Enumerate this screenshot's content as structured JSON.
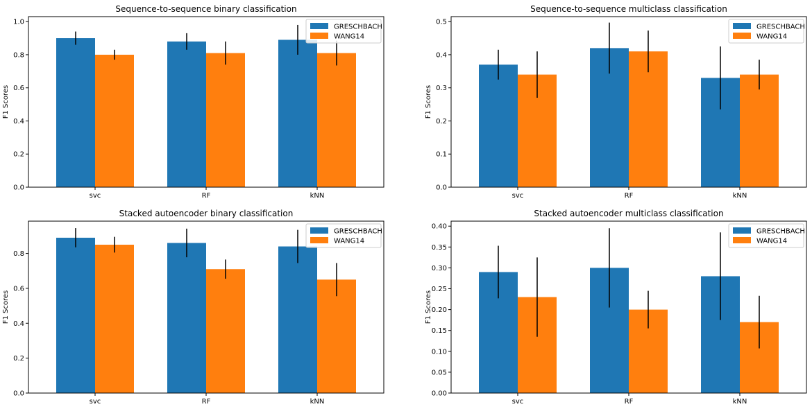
{
  "colors": {
    "greschbach": "#1f77b4",
    "wang14": "#ff7f0e",
    "error_bar": "#000000"
  },
  "chart_data": [
    {
      "type": "bar",
      "title": "Sequence-to-sequence binary classification",
      "ylabel": "F1 Scores",
      "categories": [
        "svc",
        "RF",
        "kNN"
      ],
      "ylim": [
        0,
        1.03
      ],
      "yticks": [
        "0.0",
        "0.2",
        "0.4",
        "0.6",
        "0.8",
        "1.0"
      ],
      "ytick_values": [
        0,
        0.2,
        0.4,
        0.6,
        0.8,
        1.0
      ],
      "legend": "top-right",
      "series": [
        {
          "name": "GRESCHBACH",
          "values": [
            0.9,
            0.88,
            0.89
          ],
          "errors": [
            0.04,
            0.05,
            0.09
          ]
        },
        {
          "name": "WANG14",
          "values": [
            0.8,
            0.81,
            0.81
          ],
          "errors": [
            0.03,
            0.07,
            0.075
          ]
        }
      ]
    },
    {
      "type": "bar",
      "title": "Sequence-to-sequence multiclass classification",
      "ylabel": "F1 Scores",
      "categories": [
        "svc",
        "RF",
        "kNN"
      ],
      "ylim": [
        0,
        0.515
      ],
      "yticks": [
        "0.0",
        "0.1",
        "0.2",
        "0.3",
        "0.4",
        "0.5"
      ],
      "ytick_values": [
        0,
        0.1,
        0.2,
        0.3,
        0.4,
        0.5
      ],
      "legend": "top-right",
      "series": [
        {
          "name": "GRESCHBACH",
          "values": [
            0.37,
            0.42,
            0.33
          ],
          "errors": [
            0.045,
            0.077,
            0.095
          ]
        },
        {
          "name": "WANG14",
          "values": [
            0.34,
            0.41,
            0.34
          ],
          "errors": [
            0.07,
            0.063,
            0.045
          ]
        }
      ]
    },
    {
      "type": "bar",
      "title": "Stacked autoencoder binary classification",
      "ylabel": "F1 Scores",
      "categories": [
        "svc",
        "RF",
        "kNN"
      ],
      "ylim": [
        0,
        0.985
      ],
      "yticks": [
        "0.0",
        "0.2",
        "0.4",
        "0.6",
        "0.8"
      ],
      "ytick_values": [
        0,
        0.2,
        0.4,
        0.6,
        0.8
      ],
      "legend": "top-right",
      "series": [
        {
          "name": "GRESCHBACH",
          "values": [
            0.89,
            0.86,
            0.84
          ],
          "errors": [
            0.055,
            0.082,
            0.095
          ]
        },
        {
          "name": "WANG14",
          "values": [
            0.85,
            0.71,
            0.65
          ],
          "errors": [
            0.045,
            0.055,
            0.095
          ]
        }
      ]
    },
    {
      "type": "bar",
      "title": "Stacked autoencoder multiclass classification",
      "ylabel": "F1 Scores",
      "categories": [
        "svc",
        "RF",
        "kNN"
      ],
      "ylim": [
        0,
        0.412
      ],
      "yticks": [
        "0.00",
        "0.05",
        "0.10",
        "0.15",
        "0.20",
        "0.25",
        "0.30",
        "0.35",
        "0.40"
      ],
      "ytick_values": [
        0,
        0.05,
        0.1,
        0.15,
        0.2,
        0.25,
        0.3,
        0.35,
        0.4
      ],
      "legend": "top-right",
      "series": [
        {
          "name": "GRESCHBACH",
          "values": [
            0.29,
            0.3,
            0.28
          ],
          "errors": [
            0.063,
            0.095,
            0.105
          ]
        },
        {
          "name": "WANG14",
          "values": [
            0.23,
            0.2,
            0.17
          ],
          "errors": [
            0.095,
            0.045,
            0.063
          ]
        }
      ]
    }
  ]
}
